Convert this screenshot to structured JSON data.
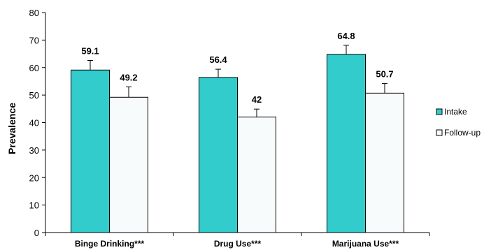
{
  "chart_data": {
    "type": "bar",
    "title": "",
    "xlabel": "",
    "ylabel": "Prevalence",
    "ylim": [
      0,
      80
    ],
    "yticks": [
      0,
      10,
      20,
      30,
      40,
      50,
      60,
      70,
      80
    ],
    "grid": false,
    "legend_position": "right",
    "categories": [
      "Binge Drinking***",
      "Drug Use***",
      "Marijuana Use***"
    ],
    "series": [
      {
        "name": "Intake",
        "values": [
          59.1,
          56.4,
          64.8
        ],
        "labels": [
          "59.1",
          "56.4",
          "64.8"
        ],
        "error": [
          3.5,
          3.0,
          3.3
        ],
        "color": "#33CCCC"
      },
      {
        "name": "Follow-up",
        "values": [
          49.2,
          42,
          50.7
        ],
        "labels": [
          "49.2",
          "42",
          "50.7"
        ],
        "error": [
          3.8,
          2.9,
          3.5
        ],
        "color": "#F8FBFB"
      }
    ]
  }
}
